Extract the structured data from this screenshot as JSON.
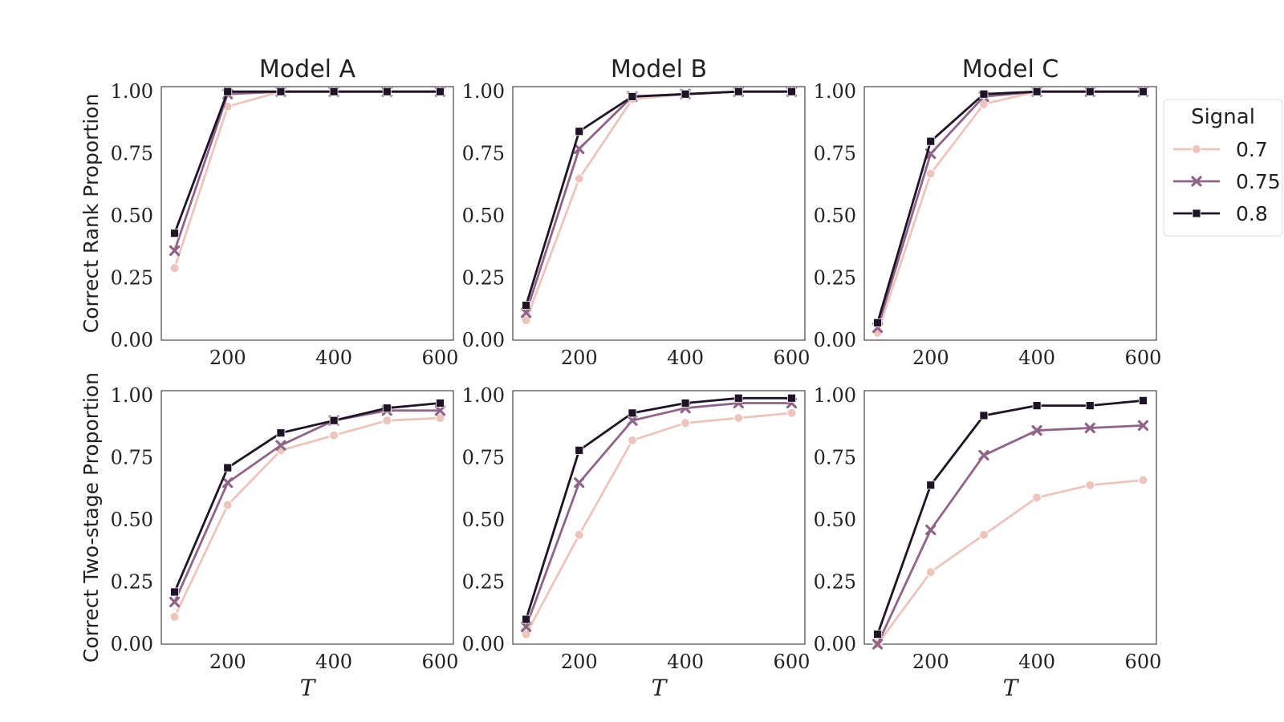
{
  "figure": {
    "column_titles": [
      "Model A",
      "Model B",
      "Model C"
    ],
    "row_ylabels": [
      "Correct Rank Proportion",
      "Correct Two-stage Proportion"
    ],
    "xlabel": "T"
  },
  "legend": {
    "title": "Signal",
    "entries": [
      {
        "label": "0.7",
        "color": "#ecc5bd",
        "marker": "circle"
      },
      {
        "label": "0.75",
        "color": "#8e6487",
        "marker": "x"
      },
      {
        "label": "0.8",
        "color": "#1e1426",
        "marker": "square"
      }
    ]
  },
  "chart_data": [
    {
      "type": "line",
      "title": "Model A",
      "xlabel": "",
      "ylabel": "Correct Rank Proportion",
      "x": [
        100,
        200,
        300,
        400,
        500,
        600
      ],
      "xlim": [
        75,
        625
      ],
      "ylim": [
        0,
        1.02
      ],
      "xticks": [
        "200",
        "400",
        "600"
      ],
      "yticks": [
        "0.00",
        "0.25",
        "0.50",
        "0.75",
        "1.00"
      ],
      "series": [
        {
          "name": "0.7",
          "values": [
            0.29,
            0.94,
            1.0,
            1.0,
            1.0,
            1.0
          ]
        },
        {
          "name": "0.75",
          "values": [
            0.36,
            0.99,
            1.0,
            1.0,
            1.0,
            1.0
          ]
        },
        {
          "name": "0.8",
          "values": [
            0.43,
            1.0,
            1.0,
            1.0,
            1.0,
            1.0
          ]
        }
      ]
    },
    {
      "type": "line",
      "title": "Model B",
      "xlabel": "",
      "ylabel": "",
      "x": [
        100,
        200,
        300,
        400,
        500,
        600
      ],
      "xlim": [
        75,
        625
      ],
      "ylim": [
        0,
        1.02
      ],
      "xticks": [
        "200",
        "400",
        "600"
      ],
      "yticks": [
        "0.00",
        "0.25",
        "0.50",
        "0.75",
        "1.00"
      ],
      "series": [
        {
          "name": "0.7",
          "values": [
            0.08,
            0.65,
            0.97,
            0.99,
            1.0,
            1.0
          ]
        },
        {
          "name": "0.75",
          "values": [
            0.11,
            0.77,
            0.98,
            0.99,
            1.0,
            1.0
          ]
        },
        {
          "name": "0.8",
          "values": [
            0.14,
            0.84,
            0.98,
            0.99,
            1.0,
            1.0
          ]
        }
      ]
    },
    {
      "type": "line",
      "title": "Model C",
      "xlabel": "",
      "ylabel": "",
      "x": [
        100,
        200,
        300,
        400,
        500,
        600
      ],
      "xlim": [
        75,
        625
      ],
      "ylim": [
        0,
        1.02
      ],
      "xticks": [
        "200",
        "400",
        "600"
      ],
      "yticks": [
        "0.00",
        "0.25",
        "0.50",
        "0.75",
        "1.00"
      ],
      "series": [
        {
          "name": "0.7",
          "values": [
            0.03,
            0.67,
            0.95,
            1.0,
            1.0,
            1.0
          ]
        },
        {
          "name": "0.75",
          "values": [
            0.05,
            0.75,
            0.98,
            1.0,
            1.0,
            1.0
          ]
        },
        {
          "name": "0.8",
          "values": [
            0.07,
            0.8,
            0.99,
            1.0,
            1.0,
            1.0
          ]
        }
      ]
    },
    {
      "type": "line",
      "title": "",
      "xlabel": "T",
      "ylabel": "Correct Two-stage Proportion",
      "x": [
        100,
        200,
        300,
        400,
        500,
        600
      ],
      "xlim": [
        75,
        625
      ],
      "ylim": [
        0,
        1.02
      ],
      "xticks": [
        "200",
        "400",
        "600"
      ],
      "yticks": [
        "0.00",
        "0.25",
        "0.50",
        "0.75",
        "1.00"
      ],
      "series": [
        {
          "name": "0.7",
          "values": [
            0.11,
            0.56,
            0.78,
            0.84,
            0.9,
            0.91
          ]
        },
        {
          "name": "0.75",
          "values": [
            0.17,
            0.65,
            0.8,
            0.9,
            0.94,
            0.94
          ]
        },
        {
          "name": "0.8",
          "values": [
            0.21,
            0.71,
            0.85,
            0.9,
            0.95,
            0.97
          ]
        }
      ]
    },
    {
      "type": "line",
      "title": "",
      "xlabel": "T",
      "ylabel": "",
      "x": [
        100,
        200,
        300,
        400,
        500,
        600
      ],
      "xlim": [
        75,
        625
      ],
      "ylim": [
        0,
        1.02
      ],
      "xticks": [
        "200",
        "400",
        "600"
      ],
      "yticks": [
        "0.00",
        "0.25",
        "0.50",
        "0.75",
        "1.00"
      ],
      "series": [
        {
          "name": "0.7",
          "values": [
            0.04,
            0.44,
            0.82,
            0.89,
            0.91,
            0.93
          ]
        },
        {
          "name": "0.75",
          "values": [
            0.07,
            0.65,
            0.9,
            0.95,
            0.97,
            0.97
          ]
        },
        {
          "name": "0.8",
          "values": [
            0.1,
            0.78,
            0.93,
            0.97,
            0.99,
            0.99
          ]
        }
      ]
    },
    {
      "type": "line",
      "title": "",
      "xlabel": "T",
      "ylabel": "",
      "x": [
        100,
        200,
        300,
        400,
        500,
        600
      ],
      "xlim": [
        75,
        625
      ],
      "ylim": [
        0,
        1.02
      ],
      "xticks": [
        "200",
        "400",
        "600"
      ],
      "yticks": [
        "0.00",
        "0.25",
        "0.50",
        "0.75",
        "1.00"
      ],
      "series": [
        {
          "name": "0.7",
          "values": [
            0.0,
            0.29,
            0.44,
            0.59,
            0.64,
            0.66
          ]
        },
        {
          "name": "0.75",
          "values": [
            0.0,
            0.46,
            0.76,
            0.86,
            0.87,
            0.88
          ]
        },
        {
          "name": "0.8",
          "values": [
            0.04,
            0.64,
            0.92,
            0.96,
            0.96,
            0.98
          ]
        }
      ]
    }
  ]
}
